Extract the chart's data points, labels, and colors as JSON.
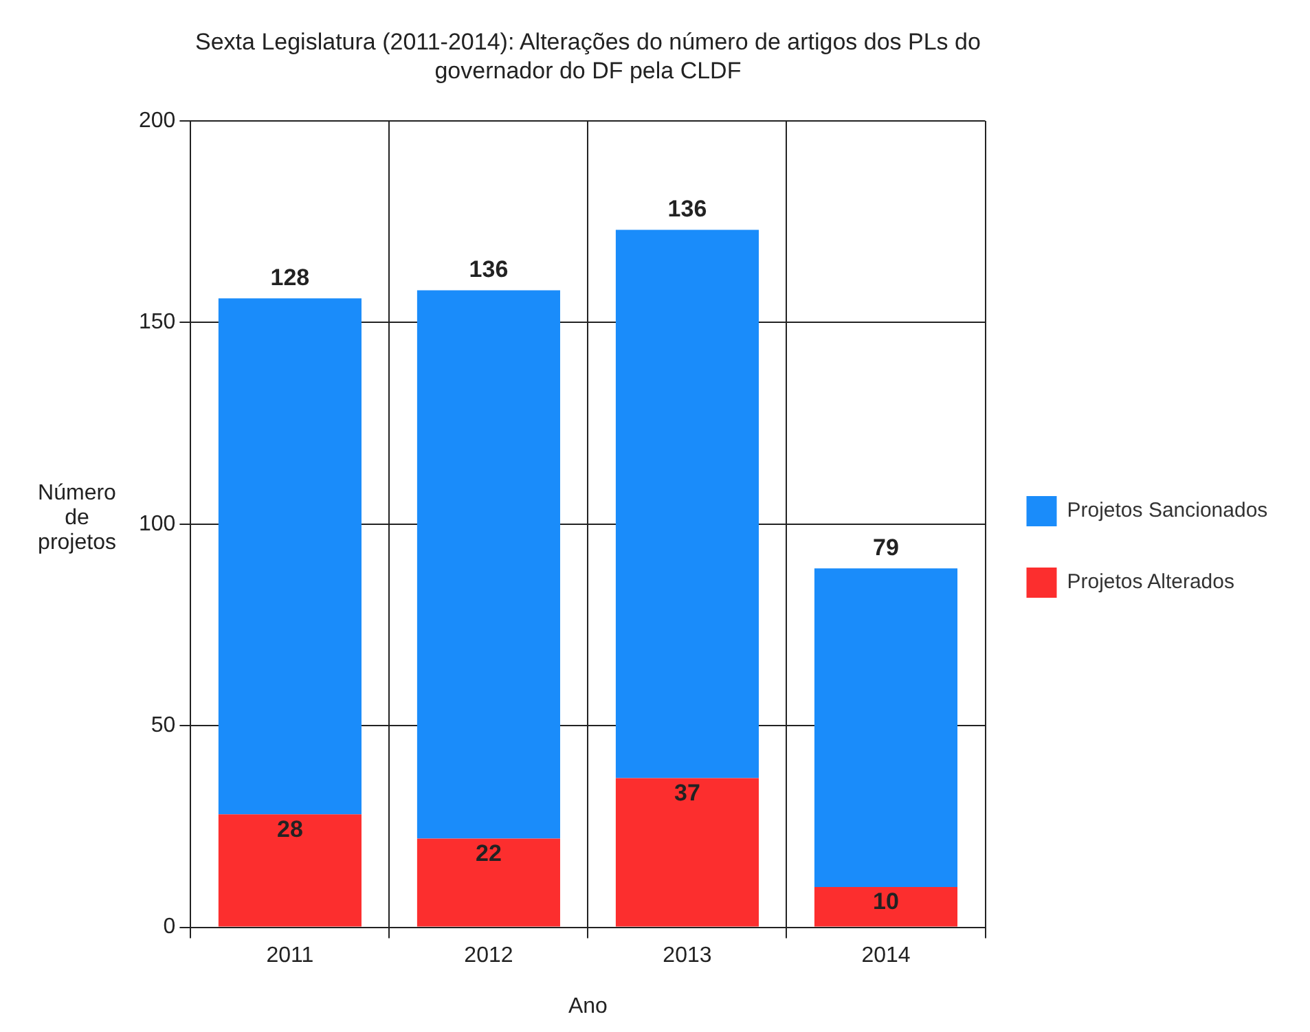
{
  "chart_data": {
    "type": "bar",
    "title": "Sexta Legislatura (2011-2014): Alterações do número de artigos dos PLs do governador do DF pela CLDF",
    "xlabel": "Ano",
    "ylabel": "Número de projetos",
    "categories": [
      "2011",
      "2012",
      "2013",
      "2014"
    ],
    "stacked": true,
    "series": [
      {
        "name": "Projetos Alterados",
        "color": "#fc2e2e",
        "values": [
          28,
          22,
          37,
          10
        ]
      },
      {
        "name": "Projetos Sancionados",
        "color": "#1a8cfa",
        "values": [
          128,
          136,
          136,
          79
        ]
      }
    ],
    "ylim": [
      0,
      200
    ],
    "yticks": [
      0,
      50,
      100,
      150,
      200
    ],
    "grid": true,
    "legend": "right",
    "data_labels": true
  }
}
